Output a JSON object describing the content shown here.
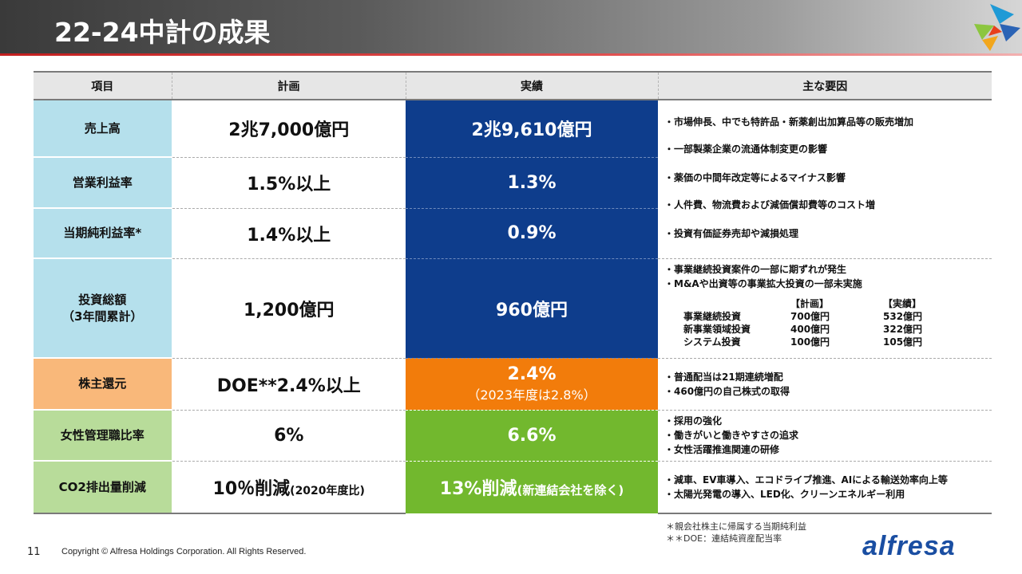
{
  "header": {
    "title": "22-24中計の成果"
  },
  "columns": {
    "item": "項目",
    "plan": "計画",
    "actual": "実績",
    "reasons": "主な要因"
  },
  "rows": [
    {
      "item": "売上高",
      "plan": "2兆7,000億円",
      "actual": "2兆9,610億円"
    },
    {
      "item": "営業利益率",
      "plan": "1.5%以上",
      "actual": "1.3%"
    },
    {
      "item": "当期純利益率*",
      "plan": "1.4%以上",
      "actual": "0.9%"
    },
    {
      "item_line1": "投資総額",
      "item_line2": "（3年間累計）",
      "plan": "1,200億円",
      "actual": "960億円"
    },
    {
      "item": "株主還元",
      "plan": "DOE**2.4%以上",
      "actual": "2.4%",
      "actual_sub": "（2023年度は2.8%）"
    },
    {
      "item": "女性管理職比率",
      "plan": "6%",
      "actual": "6.6%"
    },
    {
      "item": "CO2排出量削減",
      "plan": "10％削減",
      "plan_sub": "(2020年度比)",
      "actual": "13%削減",
      "actual_sub": "(新連結会社を除く)"
    }
  ],
  "reasons": {
    "group1": [
      "・市場伸長、中でも特許品・新薬創出加算品等の販売増加",
      "・一部製薬企業の流通体制変更の影響",
      "・薬価の中間年改定等によるマイナス影響",
      "・人件費、物流費および減価償却費等のコスト増",
      "・投資有価証券売却や減損処理"
    ],
    "investment": [
      "・事業継続投資案件の一部に期ずれが発生",
      "・M&Aや出資等の事業拡大投資の一部未実施"
    ],
    "investment_table": {
      "headers": [
        "【計画】",
        "【実績】"
      ],
      "rows": [
        {
          "label": "事業継続投資",
          "plan": "700億円",
          "actual": "532億円"
        },
        {
          "label": "新事業領域投資",
          "plan": "400億円",
          "actual": "322億円"
        },
        {
          "label": "システム投資",
          "plan": "100億円",
          "actual": "105億円"
        }
      ]
    },
    "shareholder": [
      "・普通配当は21期連続増配",
      "・460億円の自己株式の取得"
    ],
    "women": [
      "・採用の強化",
      "・働きがいと働きやすさの追求",
      "・女性活躍推進関連の研修"
    ],
    "co2": [
      "・減車、EV車導入、エコドライブ推進、AIによる輸送効率向上等",
      "・太陽光発電の導入、LED化、クリーンエネルギー利用"
    ]
  },
  "notes": [
    "＊親会社株主に帰属する当期純利益",
    "＊＊DOE：連結純資産配当率"
  ],
  "footer": {
    "page": "11",
    "copyright": "Copyright © Alfresa Holdings Corporation. All Rights Reserved.",
    "brand": "alfresa"
  }
}
